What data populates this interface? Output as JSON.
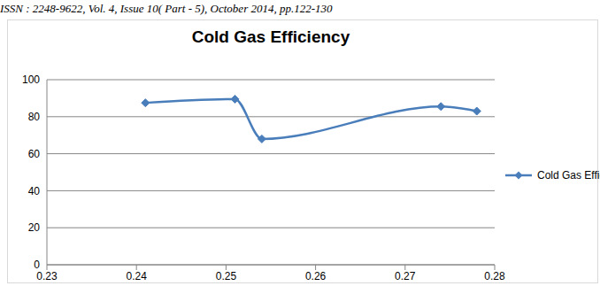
{
  "header": "ISSN : 2248-9622, Vol. 4, Issue 10( Part - 5), October 2014, pp.122-130",
  "chart_data": {
    "type": "line",
    "title": "Cold Gas Efficiency",
    "x": [
      0.241,
      0.251,
      0.254,
      0.274,
      0.278
    ],
    "series": [
      {
        "name": "Cold Gas Efficiency",
        "color": "#4a7ebb",
        "values": [
          87.5,
          89.5,
          68,
          85.5,
          83
        ],
        "marker": "diamond"
      }
    ],
    "xlim": [
      0.23,
      0.28
    ],
    "xticks": [
      0.23,
      0.24,
      0.25,
      0.26,
      0.27,
      0.28
    ],
    "ylim": [
      0,
      100
    ],
    "yticks": [
      0,
      20,
      40,
      60,
      80,
      100
    ],
    "grid": true
  }
}
